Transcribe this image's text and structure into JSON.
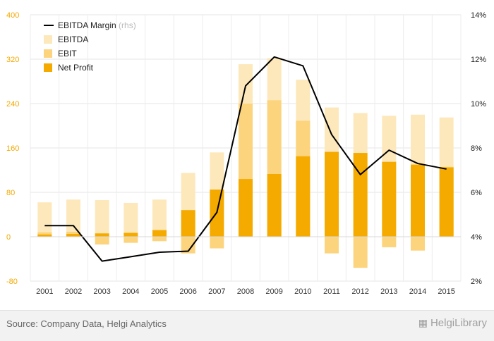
{
  "chart_data": {
    "type": "bar",
    "categories": [
      "2001",
      "2002",
      "2003",
      "2004",
      "2005",
      "2006",
      "2007",
      "2008",
      "2009",
      "2010",
      "2011",
      "2012",
      "2013",
      "2014",
      "2015"
    ],
    "series": [
      {
        "name": "EBITDA",
        "kind": "bar",
        "axis": "left",
        "color": "#fde8bb",
        "values": [
          62,
          67,
          66,
          61,
          67,
          115,
          152,
          311,
          322,
          283,
          233,
          223,
          218,
          220,
          215
        ]
      },
      {
        "name": "EBIT",
        "kind": "bar",
        "axis": "left",
        "color": "#fcd47e",
        "values": [
          8,
          9,
          -14,
          -11,
          -8,
          -30,
          -21,
          240,
          246,
          209,
          -30,
          -56,
          -19,
          -25,
          126
        ]
      },
      {
        "name": "Net Profit",
        "kind": "bar",
        "axis": "left",
        "color": "#f5aa00",
        "values": [
          4,
          5,
          6,
          7,
          12,
          48,
          85,
          104,
          113,
          145,
          153,
          151,
          135,
          130,
          125
        ]
      },
      {
        "name": "EBITDA Margin",
        "name_suffix": "(rhs)",
        "kind": "line",
        "axis": "right",
        "color": "#000000",
        "values": [
          4.5,
          4.5,
          2.9,
          3.1,
          3.3,
          3.35,
          5.1,
          10.8,
          12.1,
          11.7,
          8.6,
          6.8,
          7.9,
          7.3,
          7.05
        ]
      }
    ],
    "y_left": {
      "lim": [
        -80,
        400
      ],
      "ticks": [
        -80,
        0,
        80,
        160,
        240,
        320,
        400
      ],
      "color": "#f2a900"
    },
    "y_right": {
      "lim": [
        2,
        14
      ],
      "ticks": [
        "2%",
        "4%",
        "6%",
        "8%",
        "10%",
        "12%",
        "14%"
      ]
    },
    "legend": {
      "position": "top-left",
      "entries": [
        {
          "label": "EBITDA Margin",
          "suffix": "(rhs)",
          "marker": "line",
          "color": "#000000"
        },
        {
          "label": "EBITDA",
          "marker": "box",
          "color": "#fde8bb"
        },
        {
          "label": "EBIT",
          "marker": "box",
          "color": "#fcd47e"
        },
        {
          "label": "Net Profit",
          "marker": "box",
          "color": "#f5aa00"
        }
      ]
    },
    "grid": true
  },
  "footer": {
    "source": "Source: Company Data, Helgi Analytics",
    "brand": "HelgiLibrary",
    "brand_icon": "library-building-icon"
  }
}
